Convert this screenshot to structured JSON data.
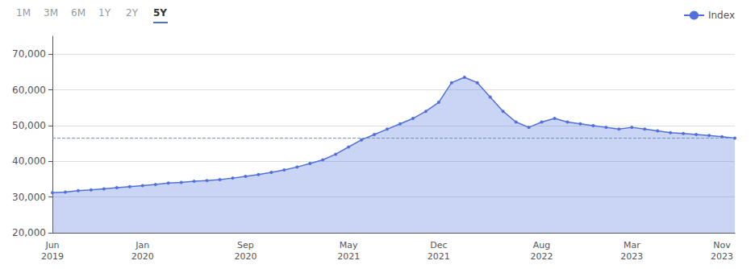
{
  "chart_data": {
    "type": "area",
    "buttons": [
      "1M",
      "3M",
      "6M",
      "1Y",
      "2Y",
      "5Y"
    ],
    "active_button": "5Y",
    "categories": [
      "Jun\n2019",
      null,
      null,
      null,
      null,
      null,
      null,
      "Jan\n2020",
      null,
      null,
      null,
      null,
      null,
      null,
      null,
      "Sep\n2020",
      null,
      null,
      null,
      null,
      null,
      null,
      null,
      "May\n2021",
      null,
      null,
      null,
      null,
      null,
      null,
      "Dec\n2021",
      null,
      null,
      null,
      null,
      null,
      null,
      null,
      "Aug\n2022",
      null,
      null,
      null,
      null,
      null,
      null,
      "Mar\n2023",
      null,
      null,
      null,
      null,
      null,
      null,
      "Nov\n2023",
      null
    ],
    "series": [
      {
        "name": "Index",
        "values": [
          31200,
          31400,
          31800,
          32000,
          32300,
          32600,
          32900,
          33200,
          33500,
          33900,
          34100,
          34400,
          34600,
          34900,
          35300,
          35800,
          36300,
          36900,
          37600,
          38400,
          39400,
          40400,
          42000,
          44000,
          46000,
          47500,
          49000,
          50500,
          52000,
          54000,
          56500,
          62000,
          63500,
          62000,
          58000,
          54000,
          51000,
          49500,
          51000,
          52000,
          51000,
          50500,
          50000,
          49500,
          49000,
          49500,
          49000,
          48500,
          48000,
          47800,
          47500,
          47200,
          46900,
          46500
        ]
      }
    ],
    "reference_line": 46500,
    "ylim": [
      20000,
      75000
    ],
    "yticks": [
      {
        "value": 20000,
        "label": "20,000"
      },
      {
        "value": 30000,
        "label": "30,000"
      },
      {
        "value": 40000,
        "label": "40,000"
      },
      {
        "value": 50000,
        "label": "50,000"
      },
      {
        "value": 60000,
        "label": "60,000"
      },
      {
        "value": 70000,
        "label": "70,000"
      }
    ],
    "grid": true,
    "legend": "upper right",
    "marker": "circle"
  }
}
